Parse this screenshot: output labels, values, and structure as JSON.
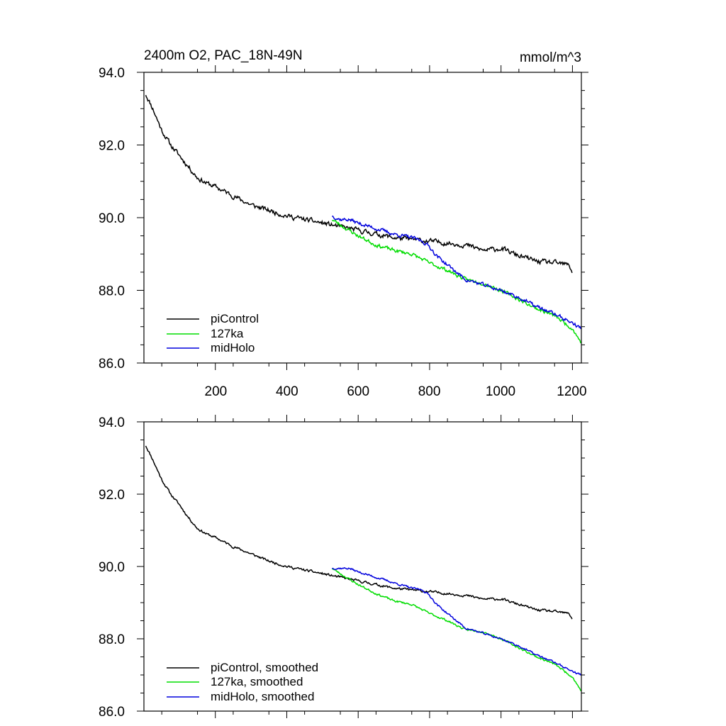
{
  "chart_data": [
    {
      "type": "line",
      "panel": "top",
      "title": "2400m O2, PAC_18N-49N",
      "units": "mmol/m^3",
      "xlim": [
        0,
        1225
      ],
      "ylim": [
        86.0,
        94.0
      ],
      "x_ticks": [
        200,
        400,
        600,
        800,
        1000,
        1200
      ],
      "x_tick_labels": [
        "200",
        "400",
        "600",
        "800",
        "1000",
        "1200"
      ],
      "y_ticks": [
        86.0,
        88.0,
        90.0,
        92.0,
        94.0
      ],
      "y_tick_labels": [
        "86.0",
        "88.0",
        "90.0",
        "92.0",
        "94.0"
      ],
      "legend": [
        "piControl",
        "127ka",
        "midHolo"
      ],
      "series": [
        {
          "name": "piControl",
          "color": "#000000",
          "noise": 0.12,
          "seed": 11,
          "points": [
            [
              5,
              93.4
            ],
            [
              25,
              93.0
            ],
            [
              50,
              92.4
            ],
            [
              75,
              92.0
            ],
            [
              100,
              91.7
            ],
            [
              125,
              91.4
            ],
            [
              150,
              91.1
            ],
            [
              175,
              90.95
            ],
            [
              200,
              90.85
            ],
            [
              250,
              90.6
            ],
            [
              300,
              90.35
            ],
            [
              350,
              90.2
            ],
            [
              400,
              90.05
            ],
            [
              450,
              89.95
            ],
            [
              500,
              89.85
            ],
            [
              550,
              89.75
            ],
            [
              600,
              89.65
            ],
            [
              650,
              89.55
            ],
            [
              700,
              89.45
            ],
            [
              750,
              89.4
            ],
            [
              800,
              89.35
            ],
            [
              850,
              89.3
            ],
            [
              900,
              89.25
            ],
            [
              950,
              89.1
            ],
            [
              1000,
              89.15
            ],
            [
              1050,
              88.95
            ],
            [
              1100,
              88.8
            ],
            [
              1150,
              88.75
            ],
            [
              1190,
              88.7
            ],
            [
              1200,
              88.5
            ]
          ]
        },
        {
          "name": "127ka",
          "color": "#00dd00",
          "noise": 0.09,
          "seed": 23,
          "points": [
            [
              527,
              89.95
            ],
            [
              550,
              89.8
            ],
            [
              600,
              89.5
            ],
            [
              650,
              89.25
            ],
            [
              700,
              89.1
            ],
            [
              750,
              89.0
            ],
            [
              800,
              88.75
            ],
            [
              850,
              88.55
            ],
            [
              900,
              88.3
            ],
            [
              950,
              88.2
            ],
            [
              1000,
              88.0
            ],
            [
              1050,
              87.75
            ],
            [
              1100,
              87.5
            ],
            [
              1150,
              87.3
            ],
            [
              1200,
              86.95
            ],
            [
              1225,
              86.55
            ]
          ]
        },
        {
          "name": "midHolo",
          "color": "#0000dd",
          "noise": 0.09,
          "seed": 37,
          "points": [
            [
              527,
              90.05
            ],
            [
              550,
              89.95
            ],
            [
              575,
              89.95
            ],
            [
              600,
              89.85
            ],
            [
              650,
              89.7
            ],
            [
              700,
              89.55
            ],
            [
              750,
              89.45
            ],
            [
              780,
              89.35
            ],
            [
              800,
              89.2
            ],
            [
              820,
              88.95
            ],
            [
              850,
              88.7
            ],
            [
              900,
              88.3
            ],
            [
              950,
              88.15
            ],
            [
              1000,
              88.0
            ],
            [
              1050,
              87.8
            ],
            [
              1100,
              87.55
            ],
            [
              1150,
              87.35
            ],
            [
              1200,
              87.1
            ],
            [
              1225,
              86.95
            ]
          ]
        }
      ]
    },
    {
      "type": "line",
      "panel": "bottom",
      "xlim": [
        0,
        1225
      ],
      "ylim": [
        86.0,
        94.0
      ],
      "x_ticks": [
        200,
        400,
        600,
        800,
        1000,
        1200
      ],
      "y_ticks": [
        86.0,
        88.0,
        90.0,
        92.0,
        94.0
      ],
      "y_tick_labels": [
        "86.0",
        "88.0",
        "90.0",
        "92.0",
        "94.0"
      ],
      "legend": [
        "piControl, smoothed",
        "127ka, smoothed",
        "midHolo, smoothed"
      ],
      "series": [
        {
          "name": "piControl, smoothed",
          "color": "#000000",
          "noise": 0.06,
          "seed": 11,
          "points": [
            [
              5,
              93.35
            ],
            [
              25,
              92.95
            ],
            [
              50,
              92.4
            ],
            [
              75,
              92.0
            ],
            [
              100,
              91.7
            ],
            [
              125,
              91.35
            ],
            [
              150,
              91.05
            ],
            [
              175,
              90.9
            ],
            [
              200,
              90.8
            ],
            [
              250,
              90.55
            ],
            [
              300,
              90.35
            ],
            [
              350,
              90.15
            ],
            [
              400,
              90.0
            ],
            [
              450,
              89.9
            ],
            [
              500,
              89.8
            ],
            [
              550,
              89.7
            ],
            [
              600,
              89.6
            ],
            [
              650,
              89.5
            ],
            [
              700,
              89.4
            ],
            [
              750,
              89.35
            ],
            [
              800,
              89.3
            ],
            [
              850,
              89.25
            ],
            [
              900,
              89.2
            ],
            [
              950,
              89.1
            ],
            [
              1000,
              89.1
            ],
            [
              1050,
              88.95
            ],
            [
              1100,
              88.8
            ],
            [
              1150,
              88.75
            ],
            [
              1190,
              88.7
            ],
            [
              1200,
              88.55
            ]
          ]
        },
        {
          "name": "127ka, smoothed",
          "color": "#00dd00",
          "noise": 0.05,
          "seed": 23,
          "points": [
            [
              527,
              89.95
            ],
            [
              550,
              89.8
            ],
            [
              600,
              89.5
            ],
            [
              650,
              89.25
            ],
            [
              700,
              89.05
            ],
            [
              750,
              88.95
            ],
            [
              800,
              88.7
            ],
            [
              850,
              88.5
            ],
            [
              900,
              88.25
            ],
            [
              950,
              88.2
            ],
            [
              1000,
              88.0
            ],
            [
              1050,
              87.75
            ],
            [
              1100,
              87.5
            ],
            [
              1150,
              87.3
            ],
            [
              1200,
              86.95
            ],
            [
              1225,
              86.55
            ]
          ]
        },
        {
          "name": "midHolo, smoothed",
          "color": "#0000dd",
          "noise": 0.05,
          "seed": 37,
          "points": [
            [
              527,
              89.95
            ],
            [
              550,
              89.95
            ],
            [
              575,
              89.95
            ],
            [
              600,
              89.85
            ],
            [
              650,
              89.7
            ],
            [
              700,
              89.55
            ],
            [
              750,
              89.4
            ],
            [
              780,
              89.35
            ],
            [
              800,
              89.2
            ],
            [
              820,
              88.95
            ],
            [
              850,
              88.7
            ],
            [
              900,
              88.3
            ],
            [
              950,
              88.15
            ],
            [
              1000,
              88.0
            ],
            [
              1050,
              87.8
            ],
            [
              1100,
              87.55
            ],
            [
              1150,
              87.35
            ],
            [
              1200,
              87.1
            ],
            [
              1225,
              87.0
            ]
          ]
        }
      ]
    }
  ]
}
